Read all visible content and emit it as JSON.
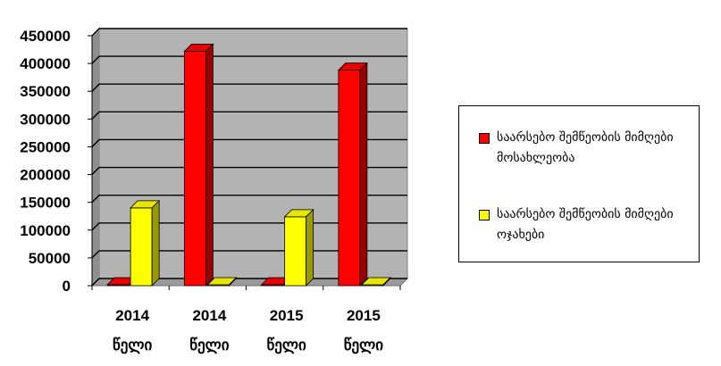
{
  "chart_data": {
    "type": "bar",
    "style": "3d-clustered-column",
    "title": "",
    "xlabel": "",
    "ylabel": "",
    "ylim": [
      0,
      450000
    ],
    "yticks": [
      "0",
      "50000",
      "100000",
      "150000",
      "200000",
      "250000",
      "300000",
      "350000",
      "400000",
      "450000"
    ],
    "grid": true,
    "legend_position": "right",
    "categories": [
      {
        "year": "2014",
        "word": "წელი"
      },
      {
        "year": "2014",
        "word": "წელი"
      },
      {
        "year": "2015",
        "word": "წელი"
      },
      {
        "year": "2015",
        "word": "წელი"
      }
    ],
    "series": [
      {
        "name": "საარსებო შემწეობის მიმღები მოსახლეობა",
        "color": "#ff0000",
        "values": [
          0,
          422000,
          0,
          388000
        ]
      },
      {
        "name": "საარსებო შემწეობის მიმღები ოჯახები",
        "color": "#ffff00",
        "values": [
          140000,
          0,
          124000,
          0
        ]
      }
    ],
    "colors": {
      "wall": "#b3b3b3",
      "floor": "#9a9a9a",
      "gridline": "#000000"
    }
  }
}
